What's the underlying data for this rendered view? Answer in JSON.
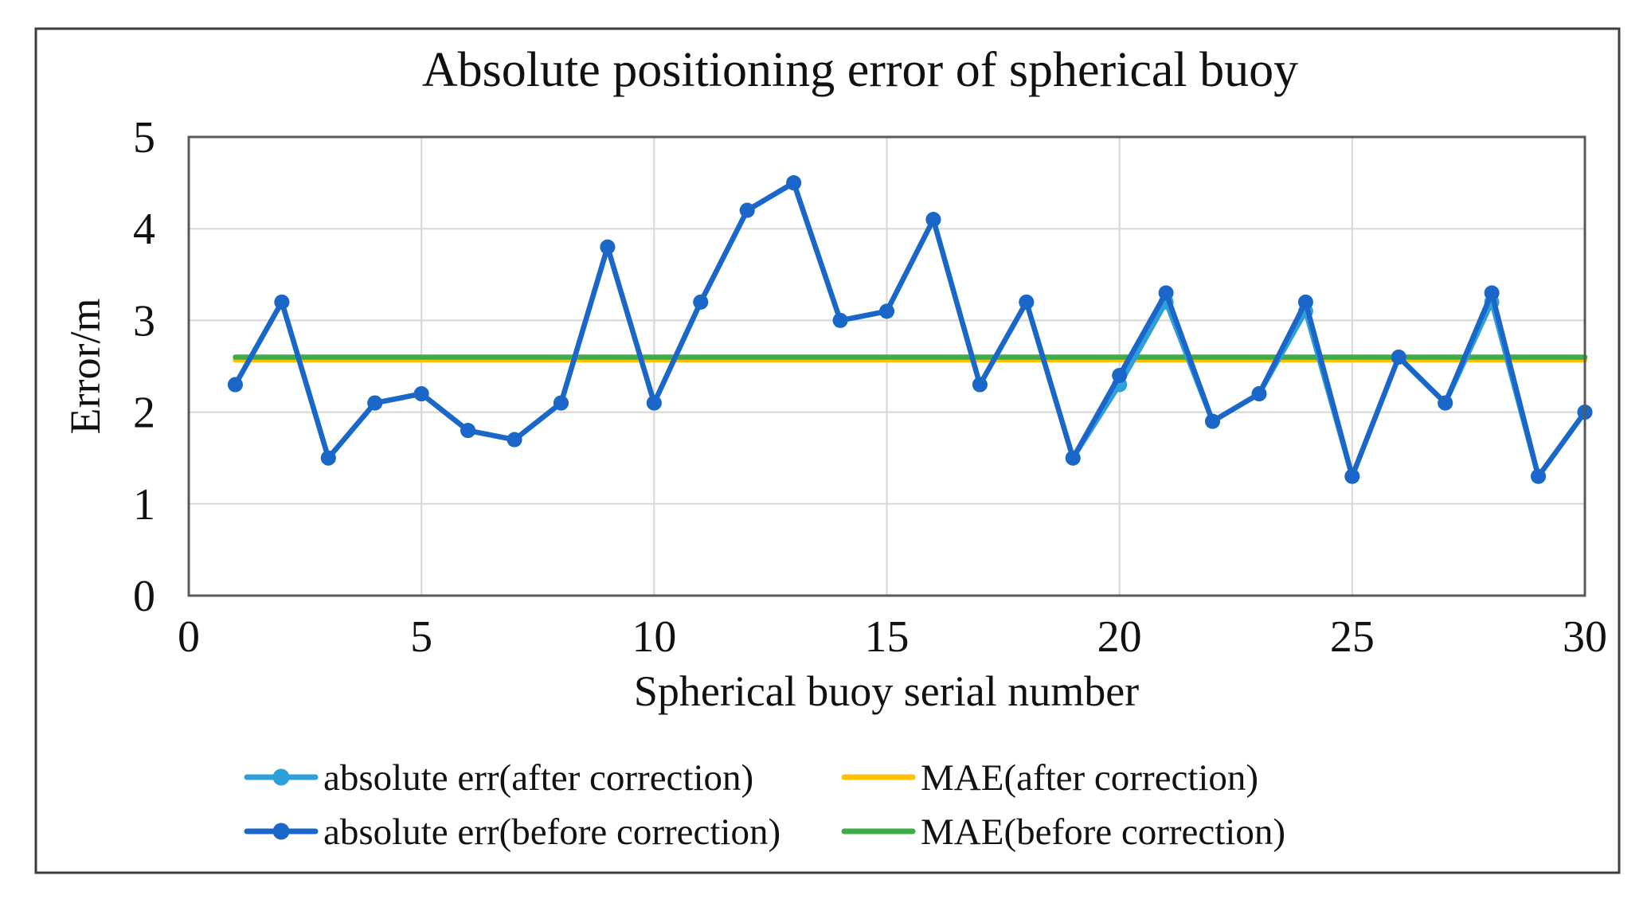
{
  "chart_data": {
    "type": "line",
    "title": "Absolute positioning error of spherical buoy",
    "xlabel": "Spherical buoy serial number",
    "ylabel": "Error/m",
    "xlim": [
      0,
      30
    ],
    "ylim": [
      0,
      5
    ],
    "x_ticks": [
      0,
      5,
      10,
      15,
      20,
      25,
      30
    ],
    "y_ticks": [
      0,
      1,
      2,
      3,
      4,
      5
    ],
    "grid": true,
    "legend_position": "bottom",
    "x": [
      1,
      2,
      3,
      4,
      5,
      6,
      7,
      8,
      9,
      10,
      11,
      12,
      13,
      14,
      15,
      16,
      17,
      18,
      19,
      20,
      21,
      22,
      23,
      24,
      25,
      26,
      27,
      28,
      29,
      30
    ],
    "series": [
      {
        "name": "absolute err(after correction)",
        "color": "#2E9FD9",
        "marker": "circle",
        "values": [
          2.3,
          3.2,
          1.5,
          2.1,
          2.2,
          1.8,
          1.7,
          2.1,
          3.8,
          2.1,
          3.2,
          4.2,
          4.5,
          3.0,
          3.1,
          4.1,
          2.3,
          3.2,
          1.5,
          2.3,
          3.2,
          1.9,
          2.2,
          3.1,
          1.3,
          2.6,
          2.1,
          3.2,
          1.3,
          2.0
        ]
      },
      {
        "name": "absolute err(before correction)",
        "color": "#1A67C9",
        "marker": "circle",
        "values": [
          2.3,
          3.2,
          1.5,
          2.1,
          2.2,
          1.8,
          1.7,
          2.1,
          3.8,
          2.1,
          3.2,
          4.2,
          4.5,
          3.0,
          3.1,
          4.1,
          2.3,
          3.2,
          1.5,
          2.4,
          3.3,
          1.9,
          2.2,
          3.2,
          1.3,
          2.6,
          2.1,
          3.3,
          1.3,
          2.0
        ]
      }
    ],
    "reference_lines": [
      {
        "name": "MAE(after correction)",
        "color": "#FFC000",
        "value": 2.57,
        "x_start": 1,
        "x_end": 30
      },
      {
        "name": "MAE(before correction)",
        "color": "#3DAE47",
        "value": 2.6,
        "x_start": 1,
        "x_end": 30
      }
    ]
  },
  "legend": {
    "items": [
      {
        "label": "absolute err(after correction)",
        "color": "#2E9FD9",
        "style": "line-marker"
      },
      {
        "label": "MAE(after correction)",
        "color": "#FFC000",
        "style": "line"
      },
      {
        "label": "absolute err(before correction)",
        "color": "#1A67C9",
        "style": "line-marker"
      },
      {
        "label": "MAE(before correction)",
        "color": "#3DAE47",
        "style": "line"
      }
    ]
  }
}
